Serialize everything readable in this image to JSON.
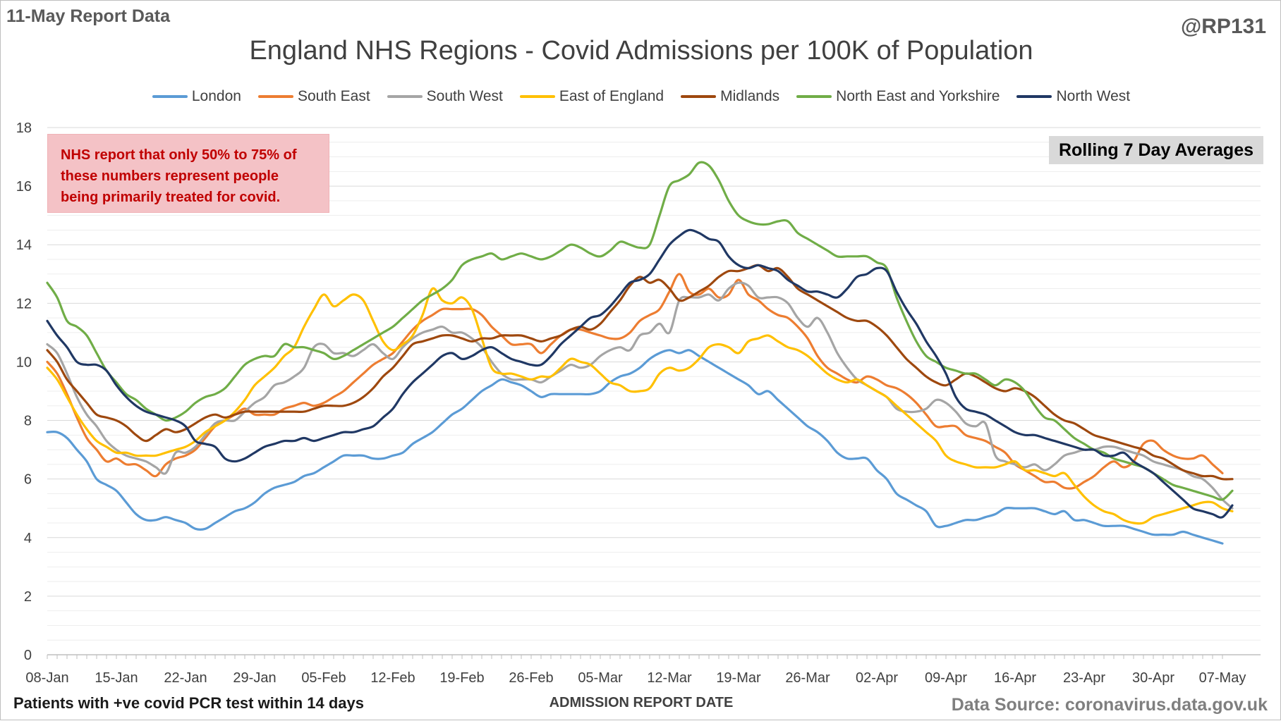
{
  "header": {
    "report_label": "11-May Report Data",
    "handle": "@RP131"
  },
  "footer": {
    "left_note": "Patients with +ve covid PCR test within 14 days",
    "source": "Data Source: coronavirus.data.gov.uk"
  },
  "annotations": {
    "note_lines": [
      "NHS report that only 50% to 75% of",
      "these numbers represent people",
      "being primarily treated for covid."
    ],
    "badge": "Rolling 7 Day Averages"
  },
  "chart_data": {
    "type": "line",
    "title": "England NHS Regions - Covid Admissions per 100K of Population",
    "xlabel": "ADMISSION REPORT DATE",
    "ylabel": "",
    "ylim": [
      0,
      18
    ],
    "y_ticks": [
      0,
      2,
      4,
      6,
      8,
      10,
      12,
      14,
      16,
      18
    ],
    "grid": true,
    "legend_position": "top",
    "x_start": "2022-01-08",
    "x_tick_labels": [
      "08-Jan",
      "15-Jan",
      "22-Jan",
      "29-Jan",
      "05-Feb",
      "12-Feb",
      "19-Feb",
      "26-Feb",
      "05-Mar",
      "12-Mar",
      "19-Mar",
      "26-Mar",
      "02-Apr",
      "09-Apr",
      "16-Apr",
      "23-Apr",
      "30-Apr",
      "07-May"
    ],
    "note": "One value per day, 08-Jan to 08-May; values estimated from the plot.",
    "series": [
      {
        "name": "London",
        "color": "#5b9bd5",
        "values": [
          7.6,
          7.6,
          7.4,
          7.0,
          6.6,
          6.0,
          5.8,
          5.6,
          5.2,
          4.8,
          4.6,
          4.6,
          4.7,
          4.6,
          4.5,
          4.3,
          4.3,
          4.5,
          4.7,
          4.9,
          5.0,
          5.2,
          5.5,
          5.7,
          5.8,
          5.9,
          6.1,
          6.2,
          6.4,
          6.6,
          6.8,
          6.8,
          6.8,
          6.7,
          6.7,
          6.8,
          6.9,
          7.2,
          7.4,
          7.6,
          7.9,
          8.2,
          8.4,
          8.7,
          9.0,
          9.2,
          9.4,
          9.3,
          9.2,
          9.0,
          8.8,
          8.9,
          8.9,
          8.9,
          8.9,
          8.9,
          9.0,
          9.3,
          9.5,
          9.6,
          9.8,
          10.1,
          10.3,
          10.4,
          10.3,
          10.4,
          10.2,
          10.0,
          9.8,
          9.6,
          9.4,
          9.2,
          8.9,
          9.0,
          8.7,
          8.4,
          8.1,
          7.8,
          7.6,
          7.3,
          6.9,
          6.7,
          6.7,
          6.7,
          6.3,
          6.0,
          5.5,
          5.3,
          5.1,
          4.9,
          4.4,
          4.4,
          4.5,
          4.6,
          4.6,
          4.7,
          4.8,
          5.0,
          5.0,
          5.0,
          5.0,
          4.9,
          4.8,
          4.9,
          4.6,
          4.6,
          4.5,
          4.4,
          4.4,
          4.4,
          4.3,
          4.2,
          4.1,
          4.1,
          4.1,
          4.2,
          4.1,
          4.0,
          3.9,
          3.8
        ]
      },
      {
        "name": "South East",
        "color": "#ed7d31",
        "values": [
          10.0,
          9.6,
          8.9,
          8.1,
          7.4,
          7.0,
          6.6,
          6.7,
          6.5,
          6.5,
          6.3,
          6.1,
          6.5,
          6.7,
          6.8,
          7.0,
          7.4,
          7.8,
          8.0,
          8.2,
          8.4,
          8.2,
          8.2,
          8.2,
          8.4,
          8.5,
          8.6,
          8.5,
          8.6,
          8.8,
          9.0,
          9.3,
          9.6,
          9.9,
          10.1,
          10.3,
          10.7,
          11.1,
          11.4,
          11.6,
          11.8,
          11.8,
          11.8,
          11.8,
          11.6,
          11.2,
          10.9,
          10.6,
          10.6,
          10.6,
          10.3,
          10.6,
          10.9,
          11.1,
          11.1,
          11.0,
          10.9,
          10.8,
          10.8,
          11.0,
          11.4,
          11.6,
          11.8,
          12.4,
          13.0,
          12.4,
          12.3,
          12.5,
          12.2,
          12.3,
          12.8,
          12.3,
          12.1,
          11.8,
          11.6,
          11.5,
          11.2,
          10.8,
          10.2,
          9.8,
          9.6,
          9.4,
          9.3,
          9.5,
          9.4,
          9.2,
          9.1,
          8.9,
          8.6,
          8.2,
          7.8,
          7.8,
          7.8,
          7.5,
          7.4,
          7.3,
          7.1,
          6.9,
          6.5,
          6.3,
          6.1,
          5.9,
          5.9,
          5.7,
          5.7,
          5.9,
          6.1,
          6.4,
          6.6,
          6.4,
          6.6,
          7.2,
          7.3,
          7.0,
          6.8,
          6.7,
          6.7,
          6.8,
          6.5,
          6.2
        ]
      },
      {
        "name": "South West",
        "color": "#a5a5a5",
        "values": [
          10.6,
          10.3,
          9.6,
          8.8,
          8.2,
          7.8,
          7.3,
          7.0,
          6.8,
          6.7,
          6.6,
          6.4,
          6.2,
          6.9,
          6.9,
          7.1,
          7.5,
          7.9,
          8.0,
          8.0,
          8.3,
          8.6,
          8.8,
          9.2,
          9.3,
          9.5,
          9.8,
          10.5,
          10.6,
          10.3,
          10.3,
          10.2,
          10.4,
          10.6,
          10.3,
          10.1,
          10.5,
          10.8,
          11.0,
          11.1,
          11.2,
          11.0,
          11.0,
          10.8,
          10.5,
          10.0,
          9.6,
          9.4,
          9.4,
          9.4,
          9.3,
          9.5,
          9.7,
          9.9,
          9.8,
          9.9,
          10.2,
          10.4,
          10.5,
          10.4,
          10.9,
          11.0,
          11.3,
          11.0,
          12.1,
          12.2,
          12.2,
          12.3,
          12.1,
          12.5,
          12.7,
          12.6,
          12.2,
          12.2,
          12.2,
          12.0,
          11.5,
          11.2,
          11.5,
          11.0,
          10.3,
          9.8,
          9.4,
          9.2,
          9.0,
          8.8,
          8.4,
          8.3,
          8.3,
          8.4,
          8.7,
          8.6,
          8.3,
          7.9,
          7.8,
          7.9,
          6.8,
          6.6,
          6.5,
          6.4,
          6.5,
          6.3,
          6.5,
          6.8,
          6.9,
          7.0,
          7.0,
          7.1,
          7.1,
          7.0,
          6.9,
          6.8,
          6.6,
          6.5,
          6.4,
          6.3,
          6.1,
          6.0,
          5.7,
          5.3,
          5.0
        ]
      },
      {
        "name": "East of England",
        "color": "#ffc000",
        "values": [
          9.8,
          9.4,
          8.8,
          8.2,
          7.7,
          7.3,
          7.1,
          6.9,
          6.9,
          6.8,
          6.8,
          6.8,
          6.9,
          7.0,
          7.1,
          7.3,
          7.6,
          7.8,
          8.0,
          8.3,
          8.7,
          9.2,
          9.5,
          9.8,
          10.2,
          10.5,
          11.2,
          11.8,
          12.3,
          11.9,
          12.1,
          12.3,
          12.1,
          11.4,
          10.7,
          10.4,
          10.6,
          10.9,
          11.6,
          12.5,
          12.1,
          12.0,
          12.2,
          11.8,
          10.8,
          9.8,
          9.6,
          9.6,
          9.5,
          9.4,
          9.5,
          9.5,
          9.8,
          10.1,
          10.0,
          9.9,
          9.6,
          9.3,
          9.2,
          9.0,
          9.0,
          9.1,
          9.6,
          9.8,
          9.7,
          9.8,
          10.1,
          10.5,
          10.6,
          10.5,
          10.3,
          10.7,
          10.8,
          10.9,
          10.7,
          10.5,
          10.4,
          10.2,
          9.9,
          9.6,
          9.4,
          9.3,
          9.4,
          9.2,
          9.0,
          8.8,
          8.5,
          8.2,
          7.9,
          7.6,
          7.3,
          6.8,
          6.6,
          6.5,
          6.4,
          6.4,
          6.4,
          6.5,
          6.6,
          6.3,
          6.3,
          6.2,
          6.1,
          6.2,
          5.8,
          5.4,
          5.1,
          4.9,
          4.8,
          4.6,
          4.5,
          4.5,
          4.7,
          4.8,
          4.9,
          5.0,
          5.1,
          5.2,
          5.2,
          5.0,
          4.9
        ]
      },
      {
        "name": "Midlands",
        "color": "#9e480e",
        "values": [
          10.4,
          10.0,
          9.4,
          9.0,
          8.6,
          8.2,
          8.1,
          8.0,
          7.8,
          7.5,
          7.3,
          7.5,
          7.7,
          7.6,
          7.7,
          7.9,
          8.1,
          8.2,
          8.1,
          8.2,
          8.3,
          8.3,
          8.3,
          8.3,
          8.3,
          8.3,
          8.3,
          8.4,
          8.5,
          8.5,
          8.5,
          8.6,
          8.8,
          9.1,
          9.5,
          9.8,
          10.2,
          10.6,
          10.7,
          10.8,
          10.9,
          10.9,
          10.8,
          10.7,
          10.8,
          10.8,
          10.9,
          10.9,
          10.9,
          10.8,
          10.7,
          10.8,
          10.9,
          11.1,
          11.2,
          11.1,
          11.3,
          11.7,
          12.1,
          12.6,
          12.9,
          12.7,
          12.8,
          12.5,
          12.1,
          12.2,
          12.4,
          12.6,
          12.9,
          13.1,
          13.1,
          13.2,
          13.3,
          13.1,
          13.2,
          12.9,
          12.5,
          12.3,
          12.1,
          11.9,
          11.7,
          11.5,
          11.4,
          11.4,
          11.2,
          10.9,
          10.5,
          10.1,
          9.8,
          9.5,
          9.3,
          9.2,
          9.4,
          9.6,
          9.5,
          9.3,
          9.1,
          9.0,
          9.1,
          9.0,
          8.8,
          8.5,
          8.2,
          8.0,
          7.9,
          7.7,
          7.5,
          7.4,
          7.3,
          7.2,
          7.1,
          7.0,
          6.8,
          6.7,
          6.5,
          6.3,
          6.2,
          6.1,
          6.1,
          6.0,
          6.0
        ]
      },
      {
        "name": "North East and Yorkshire",
        "color": "#70ad47",
        "values": [
          12.7,
          12.2,
          11.4,
          11.2,
          10.9,
          10.3,
          9.7,
          9.3,
          8.9,
          8.7,
          8.4,
          8.2,
          8.0,
          8.1,
          8.3,
          8.6,
          8.8,
          8.9,
          9.1,
          9.5,
          9.9,
          10.1,
          10.2,
          10.2,
          10.6,
          10.5,
          10.5,
          10.4,
          10.3,
          10.1,
          10.2,
          10.4,
          10.6,
          10.8,
          11.0,
          11.2,
          11.5,
          11.8,
          12.1,
          12.3,
          12.5,
          12.8,
          13.3,
          13.5,
          13.6,
          13.7,
          13.5,
          13.6,
          13.7,
          13.6,
          13.5,
          13.6,
          13.8,
          14.0,
          13.9,
          13.7,
          13.6,
          13.8,
          14.1,
          14.0,
          13.9,
          14.0,
          15.0,
          16.0,
          16.2,
          16.4,
          16.8,
          16.7,
          16.2,
          15.5,
          15.0,
          14.8,
          14.7,
          14.7,
          14.8,
          14.8,
          14.4,
          14.2,
          14.0,
          13.8,
          13.6,
          13.6,
          13.6,
          13.6,
          13.4,
          13.2,
          12.2,
          11.4,
          10.7,
          10.2,
          10.0,
          9.8,
          9.7,
          9.6,
          9.6,
          9.4,
          9.2,
          9.4,
          9.3,
          9.0,
          8.5,
          8.1,
          8.0,
          7.7,
          7.4,
          7.2,
          7.0,
          6.9,
          6.7,
          6.6,
          6.5,
          6.4,
          6.2,
          6.0,
          5.8,
          5.7,
          5.6,
          5.5,
          5.4,
          5.3,
          5.6
        ]
      },
      {
        "name": "North West",
        "color": "#203864",
        "values": [
          11.4,
          10.9,
          10.5,
          10.0,
          9.9,
          9.9,
          9.7,
          9.2,
          8.8,
          8.5,
          8.3,
          8.2,
          8.1,
          8.0,
          7.8,
          7.3,
          7.2,
          7.1,
          6.7,
          6.6,
          6.7,
          6.9,
          7.1,
          7.2,
          7.3,
          7.3,
          7.4,
          7.3,
          7.4,
          7.5,
          7.6,
          7.6,
          7.7,
          7.8,
          8.1,
          8.4,
          8.9,
          9.3,
          9.6,
          9.9,
          10.2,
          10.3,
          10.1,
          10.2,
          10.4,
          10.5,
          10.3,
          10.1,
          10.0,
          9.9,
          9.9,
          10.2,
          10.6,
          10.9,
          11.2,
          11.5,
          11.6,
          11.9,
          12.3,
          12.7,
          12.8,
          13.0,
          13.5,
          14.0,
          14.3,
          14.5,
          14.4,
          14.2,
          14.1,
          13.6,
          13.3,
          13.2,
          13.3,
          13.2,
          13.1,
          12.8,
          12.6,
          12.4,
          12.4,
          12.3,
          12.2,
          12.5,
          12.9,
          13.0,
          13.2,
          13.1,
          12.4,
          11.8,
          11.3,
          10.7,
          10.2,
          9.6,
          8.8,
          8.4,
          8.3,
          8.2,
          8.0,
          7.8,
          7.6,
          7.5,
          7.5,
          7.4,
          7.3,
          7.2,
          7.1,
          7.0,
          7.0,
          6.8,
          6.8,
          6.9,
          6.6,
          6.4,
          6.2,
          5.9,
          5.6,
          5.3,
          5.0,
          4.9,
          4.8,
          4.7,
          5.1
        ]
      }
    ]
  }
}
